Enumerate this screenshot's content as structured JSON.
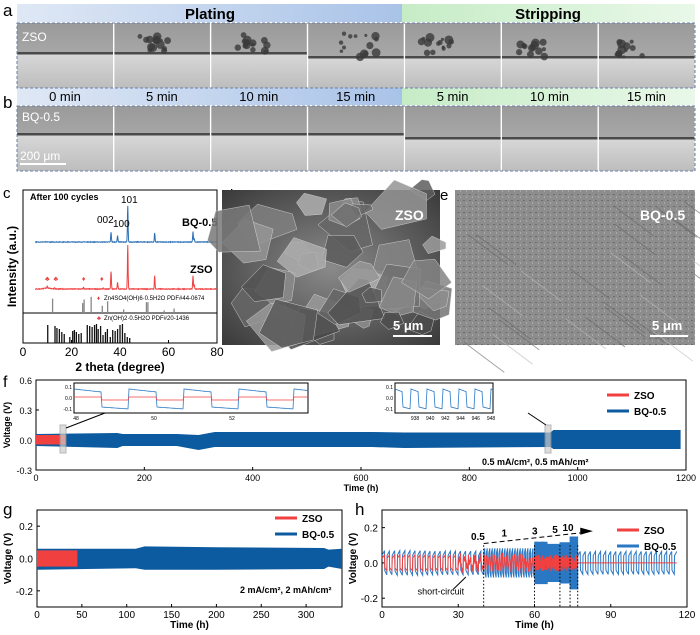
{
  "panel_labels": {
    "a": "a",
    "b": "b",
    "c": "c",
    "d": "d",
    "e": "e",
    "f": "f",
    "g": "g",
    "h": "h"
  },
  "panel_a": {
    "plating_label": "Plating",
    "stripping_label": "Stripping",
    "sample_label": "ZSO",
    "colors": {
      "plating": "#c9d9ef",
      "stripping": "#d6f0d6"
    }
  },
  "time_labels": [
    "0 min",
    "5 min",
    "10 min",
    "15 min",
    "5 min",
    "10 min",
    "15 min"
  ],
  "panel_b": {
    "sample_label": "BQ-0.5",
    "scale_bar": "200 μm"
  },
  "panel_d": {
    "sample_label": "ZSO",
    "scale_bar": "5 μm"
  },
  "panel_e": {
    "sample_label": "BQ-0.5",
    "scale_bar": "5 μm"
  },
  "chart_data": [
    {
      "id": "c",
      "type": "line",
      "xlabel": "2 theta (degree)",
      "ylabel": "Intensity (a.u.)",
      "xlim": [
        0,
        80
      ],
      "xticks": [
        0,
        20,
        40,
        60,
        80
      ],
      "annotation": "After 100 cycles",
      "peak_labels": [
        "002",
        "100",
        "101"
      ],
      "series": [
        {
          "name": "BQ-0.5",
          "color": "#2a6fb5",
          "range": [
            5,
            80
          ],
          "peaks": [
            [
              36.3,
              0.27
            ],
            [
              39.0,
              0.18
            ],
            [
              43.2,
              1.0
            ],
            [
              54.3,
              0.25
            ],
            [
              70.1,
              0.3
            ],
            [
              70.6,
              0.1
            ]
          ]
        },
        {
          "name": "ZSO",
          "color": "#f04040",
          "range": [
            5,
            80
          ],
          "peaks": [
            [
              10.0,
              0.05
            ],
            [
              13.0,
              0.03
            ],
            [
              25.0,
              0.04
            ],
            [
              33.0,
              0.02
            ],
            [
              36.3,
              0.4
            ],
            [
              39.0,
              0.15
            ],
            [
              43.2,
              1.0
            ],
            [
              54.3,
              0.3
            ],
            [
              70.1,
              0.3
            ],
            [
              70.6,
              0.1
            ]
          ],
          "markers": [
            {
              "x": 10.0,
              "symbol": "triangle"
            },
            {
              "x": 13.5,
              "symbol": "triangle"
            },
            {
              "x": 25.0,
              "symbol": "diamond"
            },
            {
              "x": 32.5,
              "symbol": "diamond"
            }
          ]
        }
      ],
      "references": [
        {
          "name": "Zn4SO4(OH)6·0.5H2O PDF#44-0674",
          "color": "#888888",
          "symbol": "diamond",
          "lines": [
            [
              12.2,
              0.8
            ],
            [
              24.6,
              0.55
            ],
            [
              25.2,
              0.75
            ],
            [
              28.1,
              0.9
            ],
            [
              32.7,
              0.4
            ],
            [
              34.9,
              0.65
            ],
            [
              41.5,
              0.2
            ],
            [
              50.9,
              0.6
            ],
            [
              51.5,
              0.6
            ],
            [
              58.2,
              0.15
            ],
            [
              62.3,
              0.25
            ]
          ]
        },
        {
          "name": "Zn(OH)2·0.5H2O PDF#20-1436",
          "color": "#111111",
          "symbol": "triangle",
          "lines": [
            [
              10.2,
              0.9
            ],
            [
              13.2,
              0.85
            ],
            [
              14.0,
              0.75
            ],
            [
              15.0,
              0.7
            ],
            [
              16.0,
              0.55
            ],
            [
              17.0,
              0.45
            ],
            [
              19.3,
              0.3
            ],
            [
              20.5,
              0.6
            ],
            [
              21.2,
              0.65
            ],
            [
              22.0,
              0.55
            ],
            [
              23.0,
              0.45
            ],
            [
              24.0,
              0.5
            ],
            [
              26.5,
              0.9
            ],
            [
              27.5,
              0.85
            ],
            [
              28.5,
              0.8
            ],
            [
              29.5,
              0.9
            ],
            [
              30.3,
              0.95
            ],
            [
              31.0,
              0.7
            ],
            [
              32.0,
              0.85
            ],
            [
              33.0,
              0.4
            ],
            [
              34.0,
              0.55
            ],
            [
              34.8,
              0.7
            ],
            [
              36.0,
              0.3
            ],
            [
              37.0,
              0.65
            ],
            [
              38.0,
              0.6
            ],
            [
              39.0,
              0.7
            ],
            [
              40.0,
              0.9
            ],
            [
              41.0,
              0.95
            ],
            [
              42.0,
              0.5
            ],
            [
              43.0,
              0.3
            ],
            [
              44.0,
              0.25
            ]
          ]
        }
      ]
    },
    {
      "id": "f",
      "type": "line",
      "xlabel": "Time (h)",
      "ylabel": "Voltage (V)",
      "xlim": [
        0,
        1200
      ],
      "ylim": [
        -0.3,
        0.6
      ],
      "xticks": [
        0,
        200,
        400,
        600,
        800,
        1000,
        1200
      ],
      "yticks": [
        "0.6",
        "0.3",
        "0.0",
        "-0.3"
      ],
      "annotation": "0.5 mA/cm², 0.5 mAh/cm²",
      "legend": "top-right",
      "series": [
        {
          "name": "ZSO",
          "color": "#f04040",
          "envelope": [
            [
              0,
              0.05,
              -0.045
            ],
            [
              55,
              0.05,
              -0.045
            ]
          ]
        },
        {
          "name": "BQ-0.5",
          "color": "#0c5aa0",
          "envelope": [
            [
              0,
              0.06,
              -0.06
            ],
            [
              150,
              0.07,
              -0.08
            ],
            [
              160,
              0.06,
              -0.06
            ],
            [
              260,
              0.06,
              -0.06
            ],
            [
              300,
              0.05,
              -0.1
            ],
            [
              330,
              0.08,
              -0.07
            ],
            [
              620,
              0.08,
              -0.07
            ],
            [
              680,
              0.075,
              -0.08
            ],
            [
              950,
              0.075,
              -0.07
            ],
            [
              955,
              0.1,
              -0.09
            ],
            [
              1190,
              0.1,
              -0.09
            ]
          ]
        }
      ],
      "insets": [
        {
          "xticks": [
            "48",
            "50",
            "52"
          ],
          "yticks": [
            "0.1",
            "0.0",
            "-0.1"
          ]
        },
        {
          "xticks": [
            "938",
            "940",
            "942",
            "944",
            "946",
            "948"
          ],
          "yticks": [
            "0.1",
            "0.0",
            "-0.1"
          ]
        }
      ]
    },
    {
      "id": "g",
      "type": "line",
      "xlabel": "Time (h)",
      "ylabel": "Voltage (V)",
      "xlim": [
        0,
        340
      ],
      "ylim": [
        -0.3,
        0.3
      ],
      "xticks": [
        0,
        50,
        100,
        150,
        200,
        250,
        300
      ],
      "yticks": [
        "0.2",
        "0.0",
        "-0.2"
      ],
      "annotation": "2 mA/cm², 2 mAh/cm²",
      "legend": "top-right",
      "series": [
        {
          "name": "ZSO",
          "color": "#f04040",
          "envelope": [
            [
              0,
              0.05,
              -0.05
            ],
            [
              45,
              0.05,
              -0.05
            ]
          ]
        },
        {
          "name": "BQ-0.5",
          "color": "#0c5aa0",
          "envelope": [
            [
              0,
              0.06,
              -0.07
            ],
            [
              110,
              0.06,
              -0.06
            ],
            [
              120,
              0.075,
              -0.07
            ],
            [
              200,
              0.07,
              -0.07
            ],
            [
              320,
              0.065,
              -0.065
            ],
            [
              325,
              0.055,
              -0.05
            ],
            [
              340,
              0.06,
              -0.065
            ]
          ]
        }
      ]
    },
    {
      "id": "h",
      "type": "line",
      "xlabel": "Time (h)",
      "ylabel": "Voltage (V)",
      "xlim": [
        0,
        120
      ],
      "ylim": [
        -0.25,
        0.3
      ],
      "xticks": [
        0,
        30,
        60,
        90,
        120
      ],
      "yticks": [
        "0.2",
        "0.0",
        "-0.2"
      ],
      "legend": "top-right",
      "rate_labels": [
        "0.5",
        "1",
        "3",
        "5",
        "10"
      ],
      "rate_boundaries": [
        40,
        60,
        70,
        74,
        77
      ],
      "short_circuit_label": "short-circuit",
      "series": [
        {
          "name": "ZSO",
          "color": "#f04040",
          "segments": [
            [
              0,
              40,
              2,
              0.045
            ],
            [
              40,
              60,
              1,
              0.05
            ],
            [
              60,
              77,
              0.4,
              0.03
            ],
            [
              77,
              116,
              2,
              0.0
            ]
          ]
        },
        {
          "name": "BQ-0.5",
          "color": "#2a78c4",
          "segments": [
            [
              0,
              40,
              2,
              0.07
            ],
            [
              40,
              60,
              1,
              0.09
            ],
            [
              60,
              70,
              0.2,
              0.12
            ],
            [
              70,
              74,
              0.1,
              0.13
            ],
            [
              74,
              77,
              0.05,
              0.15
            ],
            [
              77,
              116,
              2,
              0.065
            ]
          ]
        }
      ]
    }
  ]
}
